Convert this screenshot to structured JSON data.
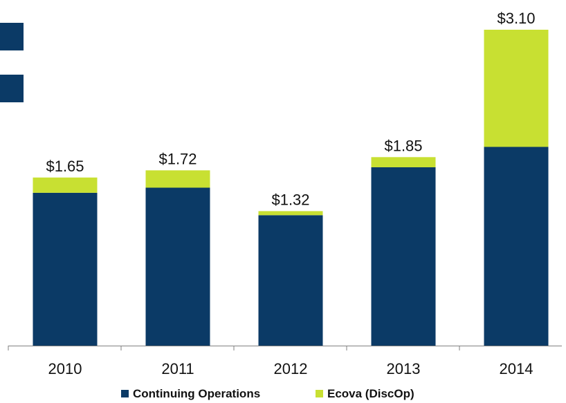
{
  "chart_data": {
    "type": "bar",
    "stacked": true,
    "categories": [
      "2010",
      "2011",
      "2012",
      "2013",
      "2014"
    ],
    "series": [
      {
        "name": "Continuing Operations",
        "color": "#0b3a66",
        "values": [
          1.5,
          1.55,
          1.28,
          1.75,
          1.95
        ]
      },
      {
        "name": "Ecova (DiscOp)",
        "color": "#c8e032",
        "values": [
          0.15,
          0.17,
          0.04,
          0.1,
          1.15
        ]
      }
    ],
    "totals": [
      "$1.65",
      "$1.72",
      "$1.32",
      "$1.85",
      "$3.10"
    ],
    "ylim": [
      0,
      3.1
    ],
    "grid": false,
    "legend_position": "bottom",
    "title": "",
    "xlabel": "",
    "ylabel": ""
  }
}
